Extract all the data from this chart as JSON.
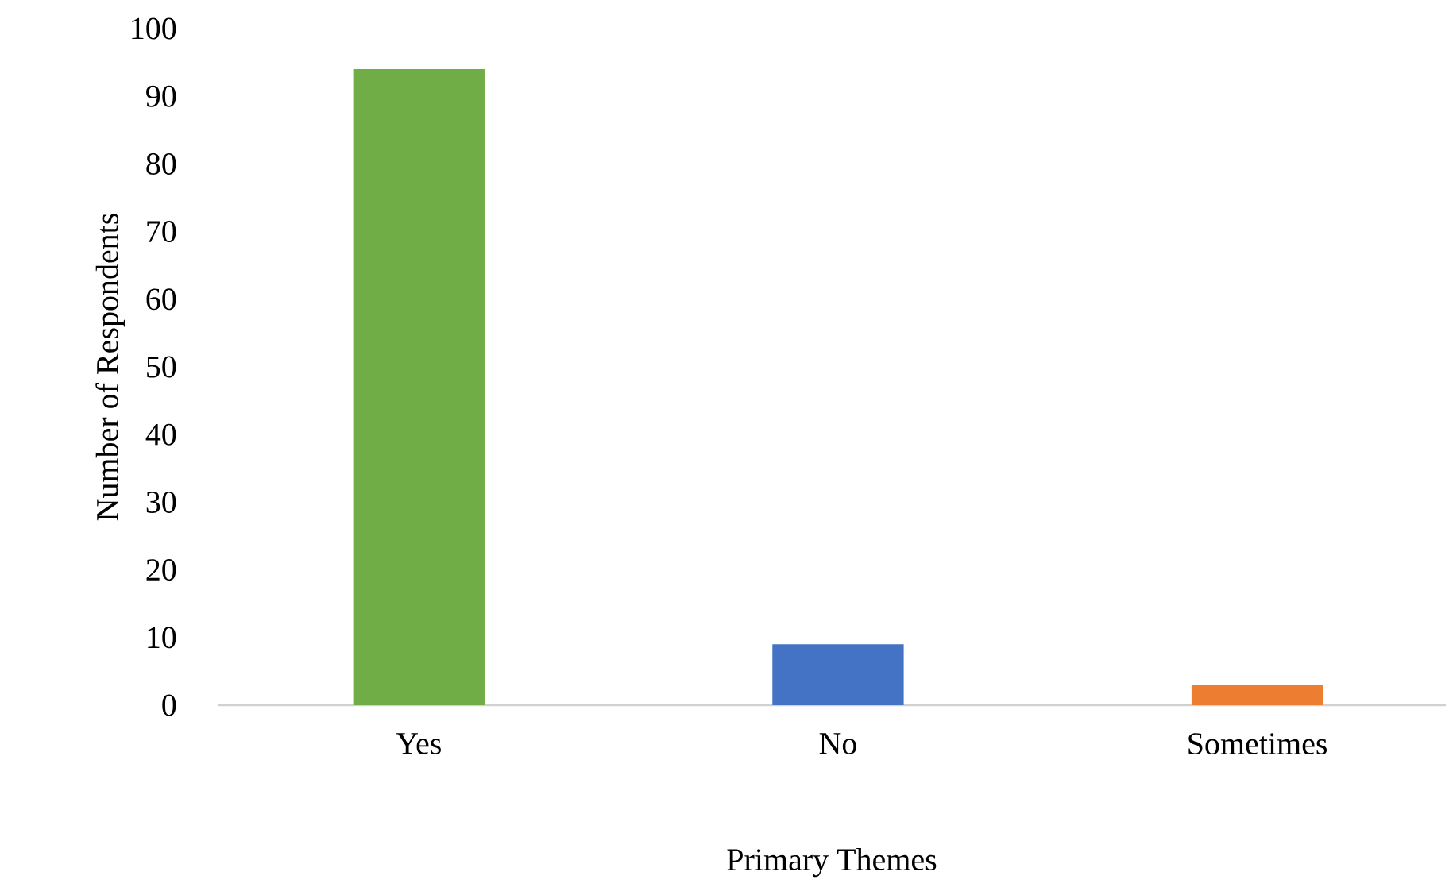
{
  "chart_data": {
    "type": "bar",
    "xlabel": "Primary Themes",
    "ylabel": "Number of Respondents",
    "categories": [
      "Yes",
      "No",
      "Sometimes"
    ],
    "values": [
      94,
      9,
      3
    ],
    "colors": [
      "#70ad47",
      "#4472c4",
      "#ed7d31"
    ],
    "ylim": [
      0,
      100
    ],
    "yticks": [
      0,
      10,
      20,
      30,
      40,
      50,
      60,
      70,
      80,
      90,
      100
    ]
  }
}
